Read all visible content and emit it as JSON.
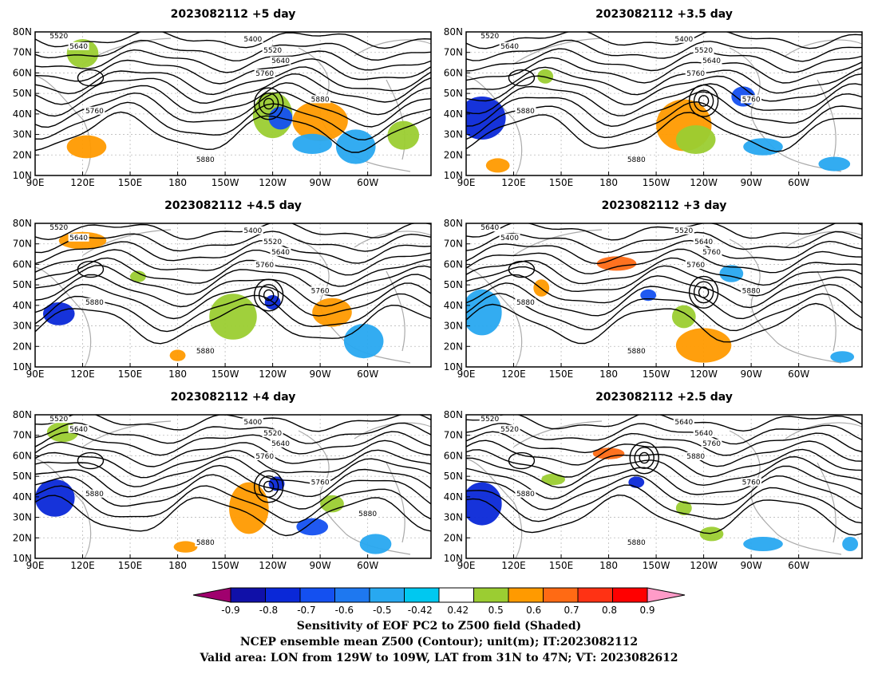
{
  "panels": [
    {
      "title": "2023082112 +5 day",
      "contour_labels": [
        "5520",
        "5640",
        "5400",
        "5520",
        "5640",
        "5760",
        "5880",
        "5760",
        "5880"
      ]
    },
    {
      "title": "2023082112 +3.5 day",
      "contour_labels": [
        "5520",
        "5640",
        "5400",
        "5520",
        "5640",
        "5760",
        "5760",
        "5880",
        "5880"
      ]
    },
    {
      "title": "2023082112 +4.5 day",
      "contour_labels": [
        "5520",
        "5640",
        "5400",
        "5520",
        "5640",
        "5760",
        "5760",
        "5880",
        "5880"
      ]
    },
    {
      "title": "2023082112 +3 day",
      "contour_labels": [
        "5640",
        "5400",
        "5520",
        "5640",
        "5760",
        "5760",
        "5880",
        "5880",
        "5880"
      ]
    },
    {
      "title": "2023082112 +4 day",
      "contour_labels": [
        "5520",
        "5640",
        "5400",
        "5520",
        "5640",
        "5760",
        "5760",
        "5880",
        "5880",
        "5880"
      ]
    },
    {
      "title": "2023082112 +2.5 day",
      "contour_labels": [
        "5520",
        "5520",
        "5640",
        "5640",
        "5760",
        "5880",
        "5760",
        "5880",
        "5880"
      ]
    }
  ],
  "axes": {
    "lat_labels": [
      "80N",
      "70N",
      "60N",
      "50N",
      "40N",
      "30N",
      "20N",
      "10N"
    ],
    "lon_labels": [
      "90E",
      "120E",
      "150E",
      "180",
      "150W",
      "120W",
      "90W",
      "60W"
    ]
  },
  "colorbar": {
    "ticks": [
      "-0.9",
      "-0.8",
      "-0.7",
      "-0.6",
      "-0.5",
      "-0.42",
      "0.42",
      "0.5",
      "0.6",
      "0.7",
      "0.8",
      "0.9"
    ],
    "colors": [
      "#a0006e",
      "#1010a8",
      "#0a28d8",
      "#1450f0",
      "#1e78f0",
      "#28a8f0",
      "#00c8f0",
      "#ffffff",
      "#9bcd32",
      "#ff9a00",
      "#ff6a14",
      "#ff3214",
      "#ff0000",
      "#ff9bc8"
    ]
  },
  "caption": {
    "line1": "Sensitivity of EOF PC2 to Z500 field (Shaded)",
    "line2": "NCEP ensemble mean Z500 (Contour); unit(m); IT:2023082112",
    "line3": "Valid area: LON from 129W to 109W, LAT from 31N to 47N; VT: 2023082612"
  }
}
